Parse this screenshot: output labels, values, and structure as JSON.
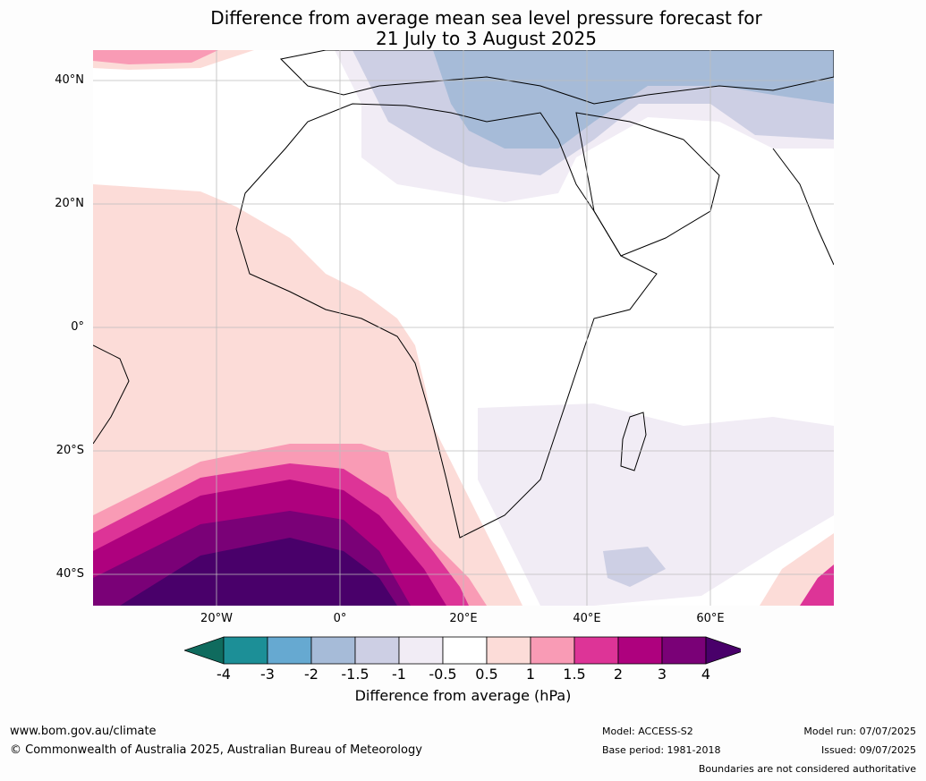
{
  "title": {
    "line1": "Difference from average mean sea level pressure forecast for",
    "line2": "21 July to 3 August 2025"
  },
  "axes": {
    "lat_labels": [
      "40°N",
      "20°N",
      "0°",
      "20°S",
      "40°S"
    ],
    "lon_labels": [
      "20°W",
      "0°",
      "20°E",
      "40°E",
      "60°E"
    ]
  },
  "colorbar": {
    "ticks": [
      "-4",
      "-3",
      "-2",
      "-1.5",
      "-1",
      "-0.5",
      "0.5",
      "1",
      "1.5",
      "2",
      "3",
      "4"
    ],
    "colors": [
      "#0f6b5e",
      "#1c8f97",
      "#66a9d1",
      "#a6bbd8",
      "#cdcfe4",
      "#f1ecf5",
      "#ffffff",
      "#fcdcd8",
      "#f99bb5",
      "#dd3497",
      "#ae017e",
      "#7a0177",
      "#49006a"
    ],
    "label": "Difference from average (hPa)"
  },
  "footer": {
    "website": "www.bom.gov.au/climate",
    "copyright": "© Commonwealth of Australia 2025, Australian Bureau of Meteorology",
    "model": "Model: ACCESS-S2",
    "base_period": "Base period: 1981-2018",
    "model_run": "Model run: 07/07/2025",
    "issued": "Issued: 09/07/2025",
    "disclaimer": "Boundaries are not considered authoritative"
  }
}
